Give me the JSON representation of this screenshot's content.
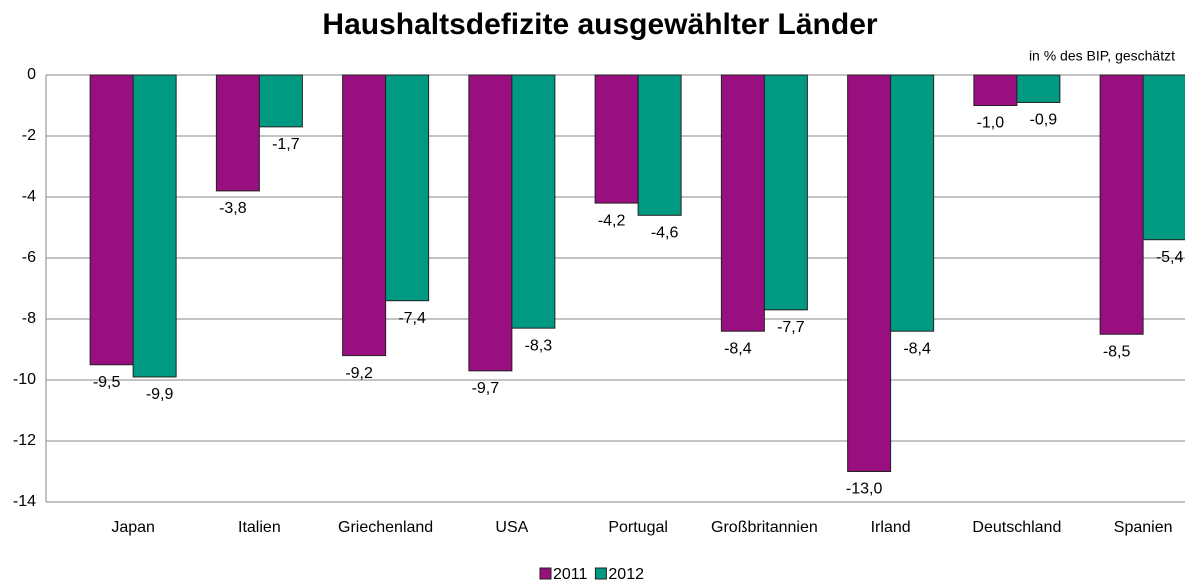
{
  "chart_data": {
    "type": "bar",
    "title": "Haushaltsdefizite ausgewählter Länder",
    "subtitle": "in % des BIP, geschätzt",
    "categories": [
      "Japan",
      "Italien",
      "Griechenland",
      "USA",
      "Portugal",
      "Großbritannien",
      "Irland",
      "Deutschland",
      "Spanien"
    ],
    "series": [
      {
        "name": "2011",
        "color": "#990f80",
        "values": [
          -9.5,
          -3.8,
          -9.2,
          -9.7,
          -4.2,
          -8.4,
          -13.0,
          -1.0,
          -8.5
        ],
        "value_labels": [
          "-9,5",
          "-3,8",
          "-9,2",
          "-9,7",
          "-4,2",
          "-8,4",
          "-13,0",
          "-1,0",
          "-8,5"
        ]
      },
      {
        "name": "2012",
        "color": "#009982",
        "values": [
          -9.9,
          -1.7,
          -7.4,
          -8.3,
          -4.6,
          -7.7,
          -8.4,
          -0.9,
          -5.4
        ],
        "value_labels": [
          "-9,9",
          "-1,7",
          "-7,4",
          "-8,3",
          "-4,6",
          "-7,7",
          "-8,4",
          "-0,9",
          "-5,4"
        ]
      }
    ],
    "ylim": [
      -14,
      0
    ],
    "yticks": [
      0,
      -2,
      -4,
      -6,
      -8,
      -10,
      -12,
      -14
    ],
    "grid": true
  }
}
